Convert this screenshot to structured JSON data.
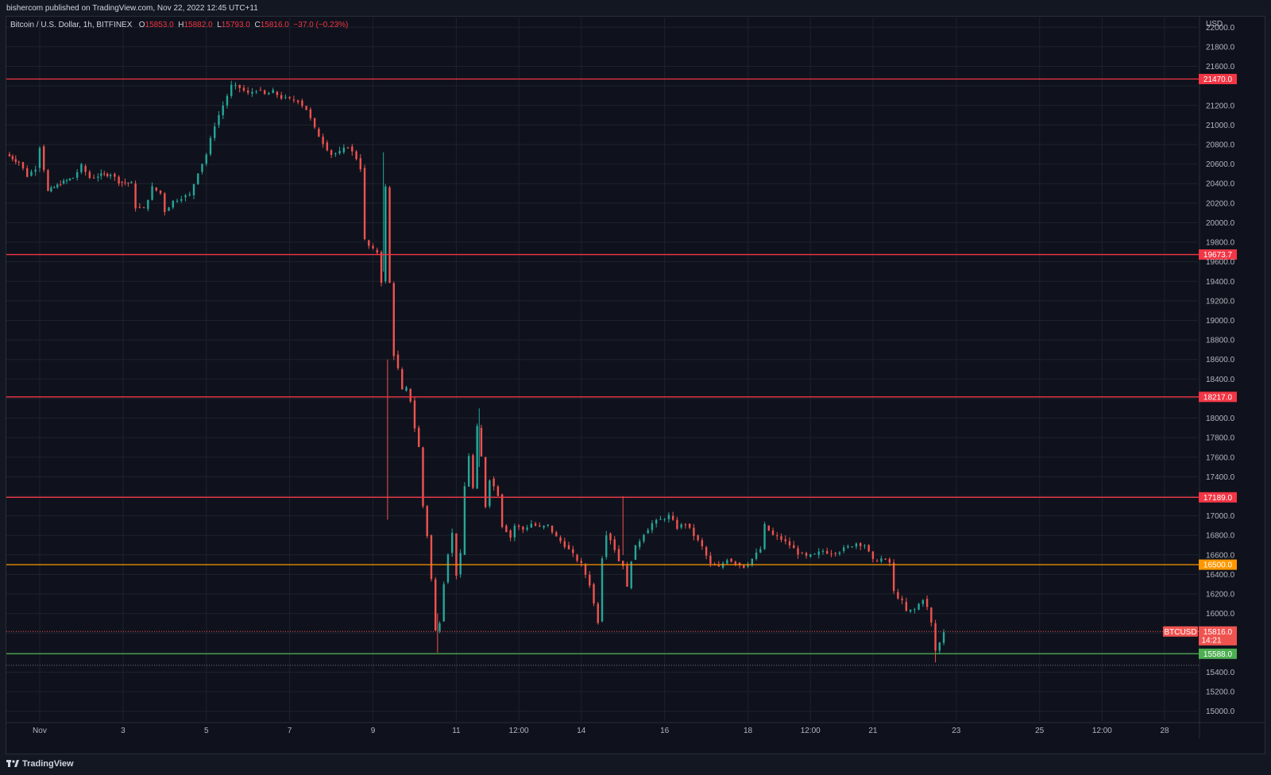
{
  "header": {
    "publisher": "bishercom published on TradingView.com, Nov 22, 2022 12:45 UTC+11"
  },
  "legend": {
    "symbol": "Bitcoin / U.S. Dollar, 1h, BITFINEX",
    "o_label": "O",
    "o_value": "15853.0",
    "h_label": "H",
    "h_value": "15882.0",
    "l_label": "L",
    "l_value": "15793.0",
    "c_label": "C",
    "c_value": "15816.0",
    "change": "−37.0 (−0.23%)"
  },
  "footer": {
    "brand": "TradingView"
  },
  "colors": {
    "up": "#26a69a",
    "down": "#ef5350",
    "red_line": "#f23645",
    "orange_line": "#ff9800",
    "green_line": "#4caf50",
    "grid": "#1e222d"
  },
  "chart_data": {
    "type": "candlestick",
    "title": "Bitcoin / U.S. Dollar, 1h, BITFINEX",
    "currency_label": "USD",
    "ylim": [
      14900,
      22100
    ],
    "yticks": [
      15000,
      15200,
      15400,
      15600,
      15800,
      16000,
      16200,
      16400,
      16600,
      16800,
      17000,
      17200,
      17400,
      17600,
      17800,
      18000,
      18200,
      18400,
      18600,
      18800,
      19000,
      19200,
      19400,
      19600,
      19800,
      20000,
      20200,
      20400,
      20600,
      20800,
      21000,
      21200,
      21400,
      21600,
      21800,
      22000
    ],
    "ytick_labels": [
      "15000.0",
      "15200.0",
      "15400.0",
      "15600.0",
      "15800.0",
      "16000.0",
      "16200.0",
      "16400.0",
      "16600.0",
      "16800.0",
      "17000.0",
      "17200.0",
      "17400.0",
      "17600.0",
      "17800.0",
      "18000.0",
      "18200.0",
      "18400.0",
      "18600.0",
      "18800.0",
      "19000.0",
      "19200.0",
      "19400.0",
      "19600.0",
      "19800.0",
      "20000.0",
      "20200.0",
      "20400.0",
      "20600.0",
      "20800.0",
      "21000.0",
      "21200.0",
      "21400.0",
      "21600.0",
      "21800.0",
      "22000.0"
    ],
    "xlim_days": [
      0,
      28.6
    ],
    "xticks": [
      {
        "day": 0.8,
        "label": "Nov"
      },
      {
        "day": 2.8,
        "label": "3"
      },
      {
        "day": 4.8,
        "label": "5"
      },
      {
        "day": 6.8,
        "label": "7"
      },
      {
        "day": 8.8,
        "label": "9"
      },
      {
        "day": 10.8,
        "label": "11"
      },
      {
        "day": 12.3,
        "label": "12:00"
      },
      {
        "day": 13.8,
        "label": "14"
      },
      {
        "day": 15.8,
        "label": "16"
      },
      {
        "day": 17.8,
        "label": "18"
      },
      {
        "day": 19.3,
        "label": "12:00"
      },
      {
        "day": 20.8,
        "label": "21"
      },
      {
        "day": 22.8,
        "label": "23"
      },
      {
        "day": 24.8,
        "label": "25"
      },
      {
        "day": 26.3,
        "label": "12:00"
      },
      {
        "day": 27.8,
        "label": "28"
      }
    ],
    "price_series": {
      "name": "BTCUSD",
      "points": [
        [
          0.0,
          20700
        ],
        [
          0.3,
          20620
        ],
        [
          0.5,
          20480
        ],
        [
          0.7,
          20560
        ],
        [
          0.8,
          20780
        ],
        [
          1.0,
          20320
        ],
        [
          1.3,
          20400
        ],
        [
          1.6,
          20460
        ],
        [
          1.8,
          20580
        ],
        [
          2.0,
          20460
        ],
        [
          2.2,
          20480
        ],
        [
          2.5,
          20500
        ],
        [
          2.7,
          20420
        ],
        [
          3.0,
          20400
        ],
        [
          3.1,
          20160
        ],
        [
          3.3,
          20140
        ],
        [
          3.5,
          20360
        ],
        [
          3.7,
          20300
        ],
        [
          3.8,
          20120
        ],
        [
          4.0,
          20220
        ],
        [
          4.2,
          20260
        ],
        [
          4.4,
          20280
        ],
        [
          4.6,
          20520
        ],
        [
          4.8,
          20700
        ],
        [
          5.0,
          21000
        ],
        [
          5.2,
          21200
        ],
        [
          5.4,
          21400
        ],
        [
          5.6,
          21380
        ],
        [
          5.8,
          21320
        ],
        [
          6.0,
          21360
        ],
        [
          6.2,
          21310
        ],
        [
          6.4,
          21340
        ],
        [
          6.6,
          21280
        ],
        [
          6.8,
          21260
        ],
        [
          7.0,
          21250
        ],
        [
          7.2,
          21160
        ],
        [
          7.4,
          20960
        ],
        [
          7.6,
          20820
        ],
        [
          7.8,
          20700
        ],
        [
          8.0,
          20720
        ],
        [
          8.2,
          20780
        ],
        [
          8.4,
          20660
        ],
        [
          8.5,
          20560
        ],
        [
          8.6,
          19820
        ],
        [
          8.7,
          19760
        ],
        [
          8.8,
          19720
        ],
        [
          8.9,
          19700
        ],
        [
          9.0,
          19400
        ],
        [
          9.1,
          20360
        ],
        [
          9.2,
          19380
        ],
        [
          9.3,
          18650
        ],
        [
          9.4,
          18500
        ],
        [
          9.5,
          18280
        ],
        [
          9.6,
          18300
        ],
        [
          9.7,
          18180
        ],
        [
          9.8,
          17900
        ],
        [
          9.9,
          17700
        ],
        [
          10.0,
          17100
        ],
        [
          10.1,
          16800
        ],
        [
          10.2,
          16350
        ],
        [
          10.3,
          15820
        ],
        [
          10.4,
          15920
        ],
        [
          10.5,
          16320
        ],
        [
          10.6,
          16620
        ],
        [
          10.7,
          16820
        ],
        [
          10.8,
          16400
        ],
        [
          10.9,
          16600
        ],
        [
          11.0,
          17300
        ],
        [
          11.1,
          17620
        ],
        [
          11.2,
          17280
        ],
        [
          11.3,
          17900
        ],
        [
          11.4,
          17600
        ],
        [
          11.5,
          17100
        ],
        [
          11.6,
          17380
        ],
        [
          11.7,
          17300
        ],
        [
          11.8,
          17220
        ],
        [
          11.9,
          16900
        ],
        [
          12.0,
          16850
        ],
        [
          12.1,
          16780
        ],
        [
          12.2,
          16900
        ],
        [
          12.4,
          16860
        ],
        [
          12.6,
          16920
        ],
        [
          12.8,
          16880
        ],
        [
          13.0,
          16900
        ],
        [
          13.2,
          16780
        ],
        [
          13.4,
          16700
        ],
        [
          13.6,
          16600
        ],
        [
          13.8,
          16500
        ],
        [
          14.0,
          16300
        ],
        [
          14.1,
          16100
        ],
        [
          14.2,
          15920
        ],
        [
          14.3,
          16580
        ],
        [
          14.4,
          16820
        ],
        [
          14.5,
          16760
        ],
        [
          14.6,
          16660
        ],
        [
          14.7,
          16540
        ],
        [
          14.8,
          16500
        ],
        [
          14.9,
          16260
        ],
        [
          15.0,
          16550
        ],
        [
          15.1,
          16680
        ],
        [
          15.3,
          16820
        ],
        [
          15.5,
          16920
        ],
        [
          15.7,
          16960
        ],
        [
          15.9,
          17000
        ],
        [
          16.1,
          16880
        ],
        [
          16.3,
          16920
        ],
        [
          16.5,
          16800
        ],
        [
          16.7,
          16680
        ],
        [
          16.9,
          16500
        ],
        [
          17.1,
          16470
        ],
        [
          17.3,
          16560
        ],
        [
          17.5,
          16520
        ],
        [
          17.7,
          16480
        ],
        [
          17.9,
          16560
        ],
        [
          18.1,
          16660
        ],
        [
          18.2,
          16900
        ],
        [
          18.4,
          16800
        ],
        [
          18.6,
          16760
        ],
        [
          18.8,
          16700
        ],
        [
          19.0,
          16620
        ],
        [
          19.2,
          16580
        ],
        [
          19.4,
          16600
        ],
        [
          19.6,
          16640
        ],
        [
          19.8,
          16620
        ],
        [
          20.0,
          16640
        ],
        [
          20.2,
          16680
        ],
        [
          20.4,
          16720
        ],
        [
          20.6,
          16700
        ],
        [
          20.8,
          16540
        ],
        [
          21.0,
          16560
        ],
        [
          21.2,
          16520
        ],
        [
          21.3,
          16220
        ],
        [
          21.5,
          16120
        ],
        [
          21.6,
          16020
        ],
        [
          21.8,
          16040
        ],
        [
          22.0,
          16150
        ],
        [
          22.1,
          16060
        ],
        [
          22.2,
          15900
        ],
        [
          22.3,
          15620
        ],
        [
          22.4,
          15700
        ],
        [
          22.5,
          15816
        ]
      ]
    },
    "horizontal_levels": [
      {
        "price": 21470.0,
        "label": "21470.0",
        "color": "red"
      },
      {
        "price": 19673.7,
        "label": "19673.7",
        "color": "red"
      },
      {
        "price": 18217.0,
        "label": "18217.0",
        "color": "red"
      },
      {
        "price": 17189.0,
        "label": "17189.0",
        "color": "red"
      },
      {
        "price": 16500.0,
        "label": "16500.0",
        "color": "orange"
      },
      {
        "price": 15588.0,
        "label": "15588.0",
        "color": "green"
      }
    ],
    "current_price": {
      "symbol_tag": "BTCUSD",
      "price": 15816.0,
      "label": "15816.0",
      "countdown": "14:21"
    }
  }
}
